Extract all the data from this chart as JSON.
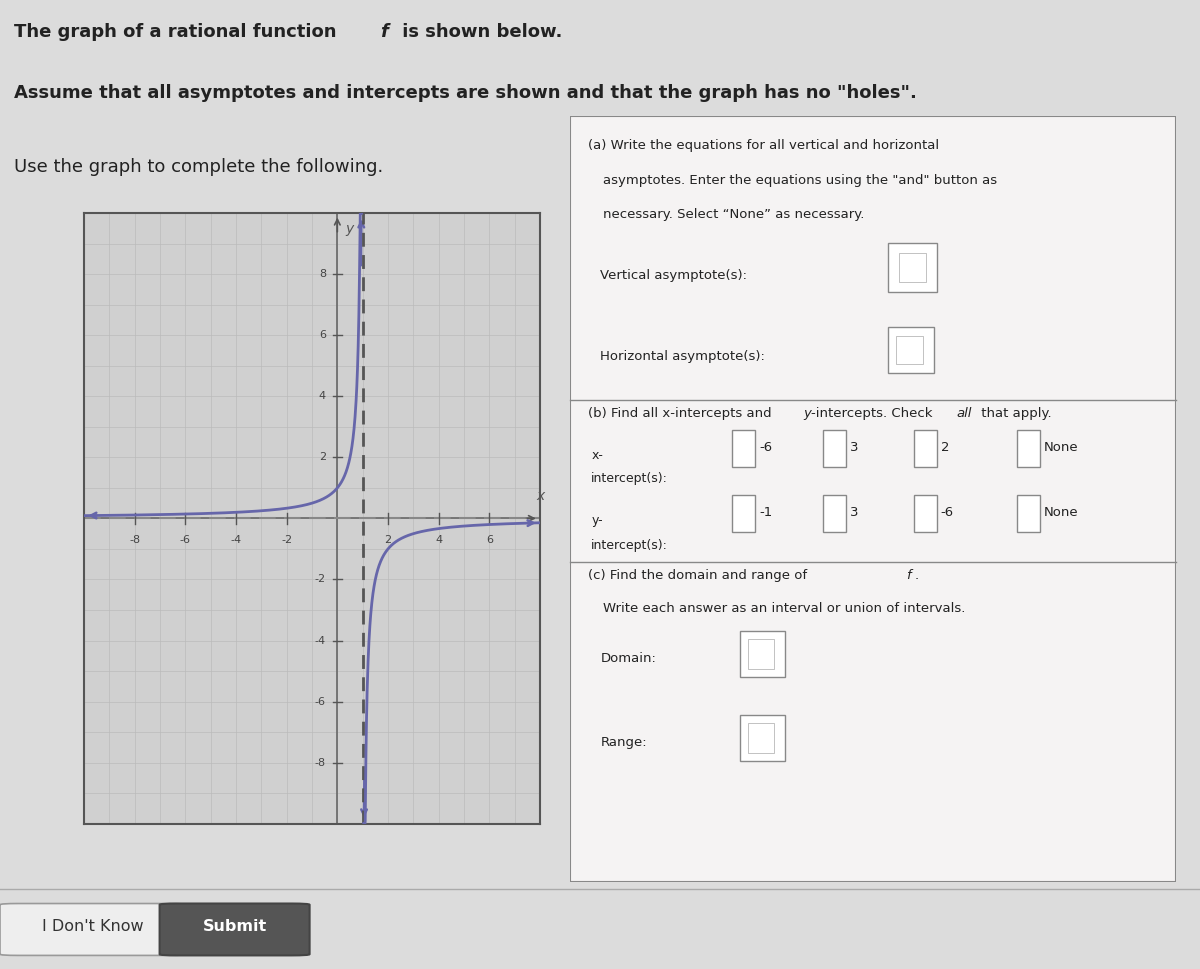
{
  "bg_color": "#dcdcdc",
  "panel_bg": "#f5f3f3",
  "graph_bg": "#d0d0d0",
  "grid_color": "#bbbbbb",
  "curve_color": "#6666aa",
  "asymptote_color": "#555555",
  "xmin": -10,
  "xmax": 8,
  "ymin": -10,
  "ymax": 10,
  "xticks": [
    -8,
    -6,
    -4,
    -2,
    2,
    4,
    6
  ],
  "yticks": [
    -8,
    -6,
    -4,
    -2,
    2,
    4,
    6,
    8
  ],
  "vertical_asymptote_x": 1,
  "horizontal_asymptote_y": 0,
  "x_intercept_options": [
    "-6",
    "3",
    "2",
    "None"
  ],
  "y_intercept_options": [
    "-1",
    "3",
    "-6",
    "None"
  ],
  "button1_label": "I Don't Know",
  "button2_label": "Submit"
}
